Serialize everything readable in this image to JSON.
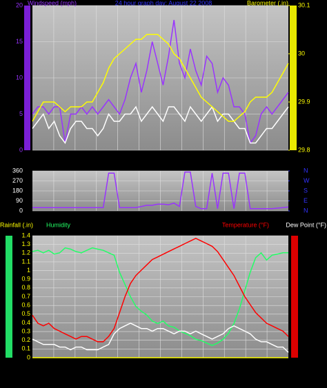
{
  "chart_data": [
    {
      "type": "line",
      "title": "24 hour graph day:  August 22 2008",
      "ylim": [
        0,
        20
      ],
      "yticks": [
        0,
        5,
        10,
        15,
        20
      ],
      "ytick_color": "#9933ff",
      "y2lim": [
        29.8,
        30.1
      ],
      "y2ticks": [
        29.8,
        29.9,
        30,
        30.1
      ],
      "y2tick_color": "#ffff00",
      "grid": true,
      "series": [
        {
          "name": "Windspeed (mph)",
          "color": "#9933ff",
          "axis": "y",
          "values": [
            5,
            6,
            6,
            5,
            6,
            6,
            1,
            5,
            5,
            6,
            5,
            6,
            5,
            6,
            7,
            6,
            5,
            7,
            10,
            12,
            8,
            11,
            15,
            12,
            9,
            13,
            18,
            12,
            10,
            14,
            11,
            9,
            13,
            12,
            8,
            10,
            9,
            6,
            6,
            5,
            1,
            2,
            5,
            6,
            5,
            6,
            7,
            8
          ]
        },
        {
          "color": "#ffffff",
          "axis": "y",
          "values": [
            3,
            4,
            5,
            3,
            4,
            2,
            1,
            3,
            4,
            4,
            3,
            3,
            2,
            3,
            5,
            4,
            4,
            5,
            5,
            6,
            4,
            5,
            6,
            5,
            4,
            6,
            6,
            5,
            4,
            6,
            5,
            4,
            5,
            6,
            4,
            5,
            5,
            4,
            3,
            3,
            1,
            1,
            2,
            3,
            3,
            4,
            5,
            6
          ]
        },
        {
          "name": "Barometer (.in)",
          "color": "#ffff00",
          "axis": "y2",
          "values": [
            29.86,
            29.88,
            29.9,
            29.9,
            29.9,
            29.89,
            29.88,
            29.89,
            29.89,
            29.89,
            29.9,
            29.9,
            29.92,
            29.94,
            29.97,
            29.99,
            30,
            30.01,
            30.02,
            30.03,
            30.03,
            30.04,
            30.04,
            30.04,
            30.03,
            30.02,
            30,
            29.99,
            29.97,
            29.95,
            29.93,
            29.91,
            29.9,
            29.89,
            29.88,
            29.87,
            29.86,
            29.86,
            29.87,
            29.88,
            29.9,
            29.91,
            29.91,
            29.91,
            29.92,
            29.94,
            29.96,
            29.98
          ]
        }
      ]
    },
    {
      "type": "line",
      "ylim": [
        0,
        360
      ],
      "yticks": [
        0,
        90,
        180,
        270,
        360
      ],
      "ytick_color": "#ffffff",
      "y2lim": [
        0,
        360
      ],
      "y2ticks": [
        {
          "value": 0,
          "label": "N"
        },
        {
          "value": 90,
          "label": "E"
        },
        {
          "value": 180,
          "label": "S"
        },
        {
          "value": 270,
          "label": "W"
        },
        {
          "value": 360,
          "label": "N"
        }
      ],
      "y2tick_color": "#3333ff",
      "grid": true,
      "series": [
        {
          "color": "#9933ff",
          "axis": "y",
          "values": [
            30,
            30,
            30,
            30,
            30,
            30,
            30,
            30,
            30,
            30,
            30,
            30,
            30,
            30,
            340,
            340,
            30,
            30,
            30,
            30,
            40,
            50,
            50,
            60,
            60,
            55,
            70,
            40,
            350,
            350,
            40,
            20,
            20,
            340,
            20,
            340,
            340,
            20,
            340,
            340,
            20,
            20,
            20,
            20,
            20,
            25,
            30,
            35
          ]
        }
      ]
    },
    {
      "type": "line",
      "ylim": [
        0,
        1.4
      ],
      "yticks": [
        0,
        0.1,
        0.2,
        0.3,
        0.4,
        0.5,
        0.6,
        0.7,
        0.8,
        0.9,
        1,
        1.1,
        1.2,
        1.3,
        1.4
      ],
      "ytick_color": "#ffff00",
      "y2lim": [
        55,
        101
      ],
      "y3lim": [
        0,
        100
      ],
      "grid": true,
      "series": [
        {
          "name": "Rainfall (.in)",
          "color": "#ffff00",
          "axis": "y",
          "values": [
            0,
            0,
            0,
            0,
            0,
            0,
            0,
            0,
            0,
            0,
            0,
            0,
            0,
            0,
            0,
            0,
            0,
            0,
            0,
            0,
            0,
            0,
            0,
            0,
            0,
            0,
            0,
            0,
            0,
            0,
            0,
            0,
            0,
            0,
            0,
            0,
            0,
            0,
            0,
            0,
            0,
            0,
            0,
            0,
            0,
            0,
            0,
            0
          ]
        },
        {
          "name": "Humidity",
          "color": "#22ff66",
          "axis": "y3",
          "values": [
            87,
            88,
            86,
            88,
            85,
            86,
            90,
            89,
            87,
            86,
            88,
            90,
            89,
            88,
            86,
            84,
            70,
            60,
            50,
            42,
            38,
            35,
            30,
            28,
            30,
            26,
            25,
            22,
            20,
            18,
            15,
            14,
            12,
            10,
            12,
            15,
            20,
            28,
            40,
            55,
            70,
            82,
            86,
            80,
            84,
            85,
            86,
            86
          ]
        },
        {
          "name": "Temperature (°F)",
          "color": "#ff0000",
          "axis": "y2",
          "values": [
            71,
            68,
            67,
            68,
            66,
            65,
            64,
            63,
            62,
            63,
            63,
            62,
            61,
            61,
            63,
            66,
            72,
            78,
            83,
            86,
            88,
            90,
            92,
            93,
            94,
            95,
            96,
            97,
            98,
            99,
            100,
            99,
            98,
            97,
            95,
            92,
            89,
            86,
            82,
            78,
            75,
            72,
            70,
            68,
            67,
            66,
            65,
            63
          ]
        },
        {
          "name": "Dew Point (°F)",
          "color": "#ffffff",
          "axis": "y2",
          "values": [
            62,
            61,
            60,
            60,
            60,
            59,
            59,
            58,
            59,
            59,
            58,
            58,
            58,
            59,
            60,
            64,
            66,
            67,
            68,
            67,
            66,
            66,
            65,
            66,
            66,
            65,
            64,
            65,
            65,
            64,
            65,
            64,
            63,
            62,
            63,
            64,
            66,
            67,
            66,
            65,
            64,
            62,
            61,
            61,
            60,
            59,
            59,
            57
          ]
        }
      ]
    }
  ]
}
